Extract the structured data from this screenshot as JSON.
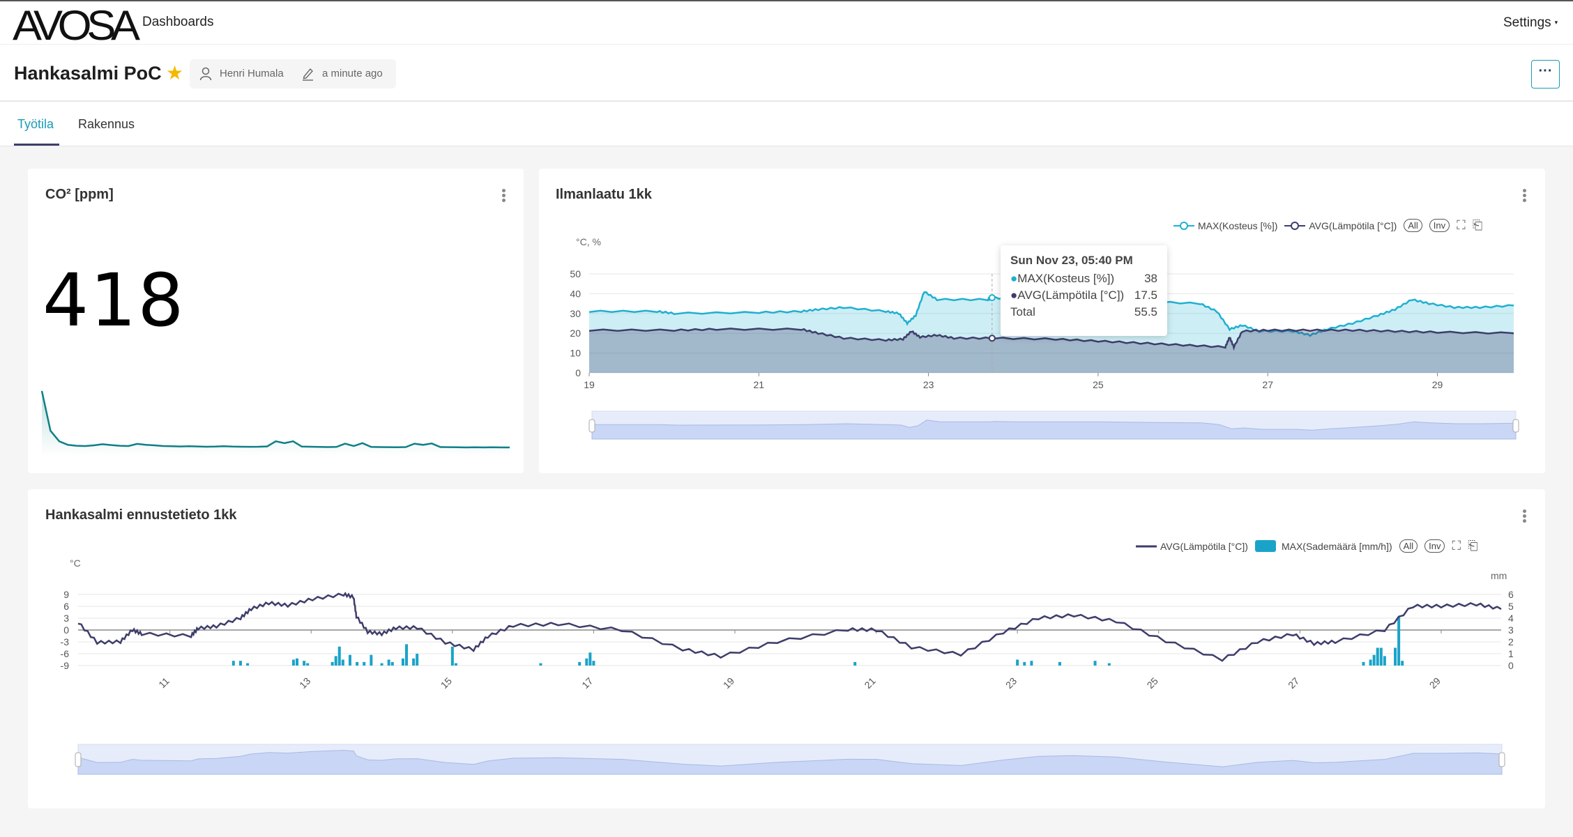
{
  "nav": {
    "logo": "AVOSA",
    "dashboards": "Dashboards",
    "settings": "Settings"
  },
  "header": {
    "title": "Hankasalmi PoC",
    "owner": "Henri Humala",
    "modified": "a minute ago",
    "more_label": "···"
  },
  "tabs": [
    {
      "label": "Työtila",
      "active": true
    },
    {
      "label": "Rakennus",
      "active": false
    }
  ],
  "colors": {
    "accent": "#1a9bb5",
    "navy": "#3d3d6b",
    "teal": "#0f7f86"
  },
  "cards": {
    "co2": {
      "title": "CO² [ppm]",
      "value": "418"
    },
    "ilmanlaatu": {
      "title": "Ilmanlaatu 1kk"
    },
    "ennuste": {
      "title": "Hankasalmi ennustetieto 1kk"
    }
  },
  "chart_data": [
    {
      "type": "line",
      "title": "CO² [ppm]",
      "series": [
        {
          "name": "CO2",
          "values": [
            900,
            560,
            470,
            440,
            432,
            430,
            436,
            445,
            438,
            432,
            430,
            448,
            440,
            436,
            430,
            428,
            426,
            428,
            426,
            424,
            425,
            428,
            425,
            424,
            423,
            424,
            426,
            470,
            455,
            470,
            425,
            424,
            422,
            421,
            422,
            450,
            430,
            455,
            422,
            421,
            420,
            419,
            421,
            450,
            440,
            452,
            421,
            420,
            419,
            418,
            419,
            418,
            419,
            418,
            418
          ]
        }
      ]
    },
    {
      "type": "area",
      "title": "Ilmanlaatu 1kk",
      "ylabel": "°C, %",
      "ylim": [
        0,
        50
      ],
      "yticks": [
        0,
        10,
        20,
        30,
        40,
        50
      ],
      "xlim": [
        19,
        29.9
      ],
      "xticks": [
        19,
        21,
        23,
        25,
        27,
        29
      ],
      "series": [
        {
          "name": "MAX(Kosteus [%])",
          "color": "#1fb0d0",
          "points": [
            [
              19,
              31
            ],
            [
              19.8,
              31
            ],
            [
              20,
              30
            ],
            [
              21,
              30.5
            ],
            [
              21.5,
              31
            ],
            [
              21.7,
              32
            ],
            [
              22,
              33
            ],
            [
              22.5,
              31
            ],
            [
              22.65,
              30
            ],
            [
              22.75,
              25
            ],
            [
              22.85,
              29
            ],
            [
              22.95,
              41
            ],
            [
              23.1,
              37
            ],
            [
              23.7,
              37
            ],
            [
              23.75,
              38
            ],
            [
              24,
              37
            ],
            [
              25,
              37
            ],
            [
              25.5,
              36
            ],
            [
              26.2,
              35
            ],
            [
              26.4,
              31
            ],
            [
              26.55,
              22
            ],
            [
              26.7,
              24
            ],
            [
              26.9,
              21
            ],
            [
              27.3,
              21
            ],
            [
              27.5,
              19
            ],
            [
              27.7,
              22
            ],
            [
              28.0,
              25
            ],
            [
              28.3,
              29
            ],
            [
              28.5,
              32
            ],
            [
              28.7,
              37
            ],
            [
              28.9,
              35
            ],
            [
              29.2,
              33
            ],
            [
              29.5,
              33
            ],
            [
              29.9,
              34
            ]
          ]
        },
        {
          "name": "AVG(Lämpötila [°C])",
          "color": "#3d3d6b",
          "points": [
            [
              19,
              21.5
            ],
            [
              20,
              21.5
            ],
            [
              20.5,
              22
            ],
            [
              21.5,
              22
            ],
            [
              21.7,
              20
            ],
            [
              22,
              17.5
            ],
            [
              22.5,
              16.5
            ],
            [
              22.7,
              17
            ],
            [
              22.8,
              21
            ],
            [
              22.9,
              18
            ],
            [
              23.1,
              19
            ],
            [
              23.3,
              17.5
            ],
            [
              23.75,
              17.5
            ],
            [
              24.5,
              17
            ],
            [
              25,
              16
            ],
            [
              25.5,
              15
            ],
            [
              26,
              14
            ],
            [
              26.5,
              13
            ],
            [
              26.55,
              18
            ],
            [
              26.6,
              13
            ],
            [
              26.7,
              21
            ],
            [
              27,
              21.5
            ],
            [
              27.5,
              21.5
            ],
            [
              28,
              21.5
            ],
            [
              28.5,
              21
            ],
            [
              29,
              20.5
            ],
            [
              29.9,
              20
            ]
          ]
        }
      ],
      "tooltip": {
        "title": "Sun Nov 23, 05:40 PM",
        "x": 23.75,
        "rows": [
          {
            "label": "MAX(Kosteus [%])",
            "value": "38"
          },
          {
            "label": "AVG(Lämpötila [°C])",
            "value": "17.5"
          },
          {
            "label": "Total",
            "value": "55.5"
          }
        ]
      },
      "legend": [
        "MAX(Kosteus [%])",
        "AVG(Lämpötila [°C])"
      ],
      "legend_buttons": [
        "All",
        "Inv"
      ]
    },
    {
      "type": "line+bar",
      "title": "Hankasalmi ennustetieto 1kk",
      "ylabel": "°C",
      "y2label": "mm",
      "ylim": [
        -9,
        9
      ],
      "yticks": [
        -9,
        -6,
        -3,
        0,
        3,
        6,
        9
      ],
      "y2lim": [
        0,
        6
      ],
      "y2ticks": [
        0,
        1,
        2,
        3,
        4,
        5,
        6
      ],
      "xlim": [
        9.7,
        29.85
      ],
      "xticks": [
        11,
        13,
        15,
        17,
        19,
        21,
        23,
        25,
        27,
        29
      ],
      "series": [
        {
          "name": "AVG(Lämpötila [°C])",
          "color": "#3d3d6b",
          "points": [
            [
              9.7,
              1.9
            ],
            [
              9.97,
              -3.2
            ],
            [
              10.3,
              -3
            ],
            [
              10.47,
              0
            ],
            [
              10.6,
              -1
            ],
            [
              11.3,
              -1.5
            ],
            [
              11.4,
              0.4
            ],
            [
              11.66,
              0.9
            ],
            [
              12.0,
              3
            ],
            [
              12.15,
              5.3
            ],
            [
              12.4,
              6.8
            ],
            [
              12.67,
              6.2
            ],
            [
              13.02,
              7.8
            ],
            [
              13.46,
              9
            ],
            [
              13.6,
              8.3
            ],
            [
              13.64,
              3.4
            ],
            [
              13.8,
              -0.5
            ],
            [
              14.0,
              -1
            ],
            [
              14.2,
              0.5
            ],
            [
              14.5,
              0.6
            ],
            [
              14.9,
              -3.2
            ],
            [
              15.3,
              -5
            ],
            [
              15.5,
              -1.7
            ],
            [
              15.86,
              1.1
            ],
            [
              16.5,
              1.5
            ],
            [
              17.4,
              0
            ],
            [
              18.26,
              -4.9
            ],
            [
              18.8,
              -6.7
            ],
            [
              19.6,
              -3
            ],
            [
              20.6,
              0.1
            ],
            [
              21.0,
              0
            ],
            [
              21.5,
              -4.4
            ],
            [
              22.2,
              -6.2
            ],
            [
              22.8,
              -0.6
            ],
            [
              23.3,
              3
            ],
            [
              23.8,
              3.7
            ],
            [
              24.4,
              2.2
            ],
            [
              25.1,
              -2.8
            ],
            [
              25.9,
              -7.5
            ],
            [
              26.4,
              -3
            ],
            [
              26.9,
              -1.1
            ],
            [
              27.2,
              -3.5
            ],
            [
              27.5,
              -3
            ],
            [
              28.2,
              0
            ],
            [
              28.6,
              6
            ],
            [
              29.0,
              6
            ],
            [
              29.5,
              6.5
            ],
            [
              29.85,
              5.3
            ]
          ]
        },
        {
          "name": "MAX(Sademäärä [mm/h])",
          "color": "#1aa3c8",
          "bars": [
            [
              11.9,
              0.4
            ],
            [
              12.0,
              0.4
            ],
            [
              12.1,
              0.2
            ],
            [
              12.75,
              0.5
            ],
            [
              12.8,
              0.6
            ],
            [
              12.9,
              0.4
            ],
            [
              12.95,
              0.2
            ],
            [
              13.3,
              0.3
            ],
            [
              13.35,
              0.8
            ],
            [
              13.4,
              1.6
            ],
            [
              13.45,
              0.5
            ],
            [
              13.55,
              0.9
            ],
            [
              13.65,
              0.3
            ],
            [
              13.75,
              0.3
            ],
            [
              13.85,
              0.9
            ],
            [
              14.0,
              0.2
            ],
            [
              14.1,
              0.5
            ],
            [
              14.15,
              0.3
            ],
            [
              14.3,
              0.6
            ],
            [
              14.35,
              1.8
            ],
            [
              14.45,
              0.6
            ],
            [
              14.5,
              1.0
            ],
            [
              15.0,
              1.6
            ],
            [
              15.05,
              0.2
            ],
            [
              16.25,
              0.2
            ],
            [
              16.8,
              0.3
            ],
            [
              16.9,
              0.6
            ],
            [
              16.95,
              1.1
            ],
            [
              17.0,
              0.4
            ],
            [
              20.7,
              0.3
            ],
            [
              23.0,
              0.5
            ],
            [
              23.1,
              0.3
            ],
            [
              23.2,
              0.4
            ],
            [
              23.6,
              0.3
            ],
            [
              24.1,
              0.4
            ],
            [
              24.3,
              0.2
            ],
            [
              27.9,
              0.3
            ],
            [
              28.0,
              0.5
            ],
            [
              28.05,
              0.9
            ],
            [
              28.1,
              1.5
            ],
            [
              28.15,
              1.5
            ],
            [
              28.2,
              0.8
            ],
            [
              28.35,
              1.5
            ],
            [
              28.4,
              4.1
            ],
            [
              28.45,
              0.4
            ]
          ]
        }
      ],
      "legend": [
        "AVG(Lämpötila [°C])",
        "MAX(Sademäärä [mm/h])"
      ],
      "legend_buttons": [
        "All",
        "Inv"
      ]
    }
  ]
}
